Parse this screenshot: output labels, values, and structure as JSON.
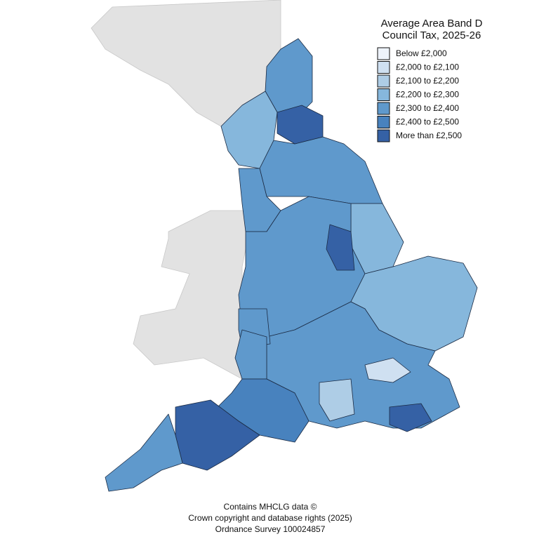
{
  "map": {
    "legend": {
      "title": [
        "Average Area Band D",
        "Council Tax, 2025-26"
      ],
      "items": [
        {
          "label": "Below £2,000",
          "color": "#eef3fb"
        },
        {
          "label": "£2,000 to £2,100",
          "color": "#cfe0f1"
        },
        {
          "label": "£2,100 to £2,200",
          "color": "#aecde6"
        },
        {
          "label": "£2,200 to £2,300",
          "color": "#86b7dc"
        },
        {
          "label": "£2,300 to £2,400",
          "color": "#5f99cc"
        },
        {
          "label": "£2,400 to £2,500",
          "color": "#4882be"
        },
        {
          "label": "More than £2,500",
          "color": "#3561a5"
        }
      ]
    },
    "source": [
      "Contains MHCLG data ©",
      "Crown copyright and database rights (2025)",
      "Ordnance Survey 100024857"
    ]
  }
}
